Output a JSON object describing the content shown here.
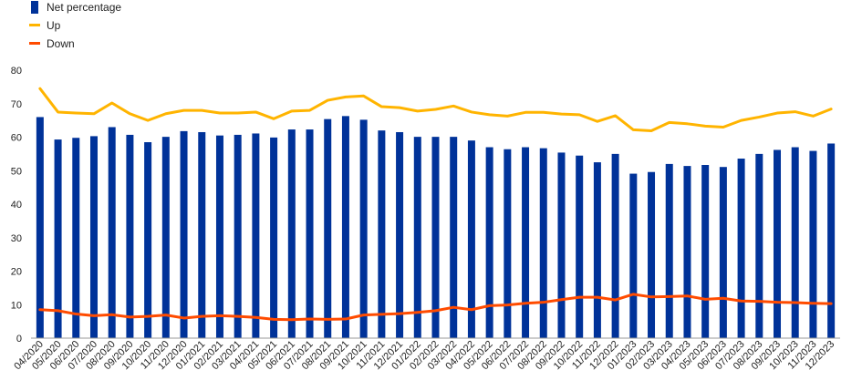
{
  "chart_data": {
    "type": "bar",
    "categories": [
      "04/2020",
      "05/2020",
      "06/2020",
      "07/2020",
      "08/2020",
      "09/2020",
      "10/2020",
      "11/2020",
      "12/2020",
      "01/2021",
      "02/2021",
      "03/2021",
      "04/2021",
      "05/2021",
      "06/2021",
      "07/2021",
      "08/2021",
      "09/2021",
      "10/2021",
      "11/2021",
      "12/2021",
      "01/2022",
      "02/2022",
      "03/2022",
      "04/2022",
      "05/2022",
      "06/2022",
      "07/2022",
      "08/2022",
      "09/2022",
      "10/2022",
      "11/2022",
      "12/2022",
      "01/2023",
      "02/2023",
      "03/2023",
      "04/2023",
      "05/2023",
      "06/2023",
      "07/2023",
      "08/2023",
      "09/2023",
      "10/2023",
      "11/2023",
      "12/2023"
    ],
    "series": [
      {
        "name": "Net percentage",
        "kind": "bar",
        "color": "#003299",
        "values": [
          66,
          59.3,
          59.8,
          60.3,
          63,
          60.7,
          58.5,
          60.1,
          61.8,
          61.5,
          60.5,
          60.7,
          61.1,
          59.9,
          62.3,
          62.3,
          65.4,
          66.3,
          65.2,
          62,
          61.5,
          60.1,
          60.1,
          60.1,
          59,
          57,
          56.4,
          57,
          56.7,
          55.4,
          54.5,
          52.5,
          55,
          49.1,
          49.6,
          52,
          51.4,
          51.7,
          51.1,
          53.6,
          55,
          56.2,
          57,
          55.9,
          58.1
        ]
      },
      {
        "name": "Up",
        "kind": "line",
        "color": "#FFB400",
        "values": [
          74.5,
          67.5,
          67.2,
          67,
          70.2,
          67,
          65,
          67,
          68,
          68,
          67.2,
          67.2,
          67.5,
          65.5,
          67.8,
          68,
          71,
          72,
          72.3,
          69.1,
          68.8,
          67.8,
          68.3,
          69.3,
          67.5,
          66.7,
          66.3,
          67.4,
          67.4,
          66.9,
          66.7,
          64.7,
          66.4,
          62.2,
          61.9,
          64.4,
          64,
          63.3,
          63,
          65,
          66,
          67.2,
          67.6,
          66.3,
          68.4
        ]
      },
      {
        "name": "Down",
        "kind": "line",
        "color": "#FF4B00",
        "values": [
          8.5,
          8.2,
          7.2,
          6.7,
          7,
          6.3,
          6.5,
          6.9,
          6,
          6.5,
          6.7,
          6.5,
          6.2,
          5.6,
          5.5,
          5.7,
          5.6,
          5.7,
          6.9,
          7.1,
          7.3,
          7.7,
          8.2,
          9.2,
          8.5,
          9.7,
          9.9,
          10.4,
          10.7,
          11.5,
          12.2,
          12.2,
          11.4,
          13.1,
          12.3,
          12.4,
          12.6,
          11.6,
          11.9,
          11.1,
          11,
          10.7,
          10.6,
          10.4,
          10.3
        ]
      }
    ],
    "legend": [
      "Net percentage",
      "Up",
      "Down"
    ],
    "legend_position": "top-left",
    "ylim": [
      0,
      80
    ],
    "yticks": [
      "0",
      "10",
      "20",
      "30",
      "40",
      "50",
      "60",
      "70",
      "80"
    ],
    "grid": false
  }
}
